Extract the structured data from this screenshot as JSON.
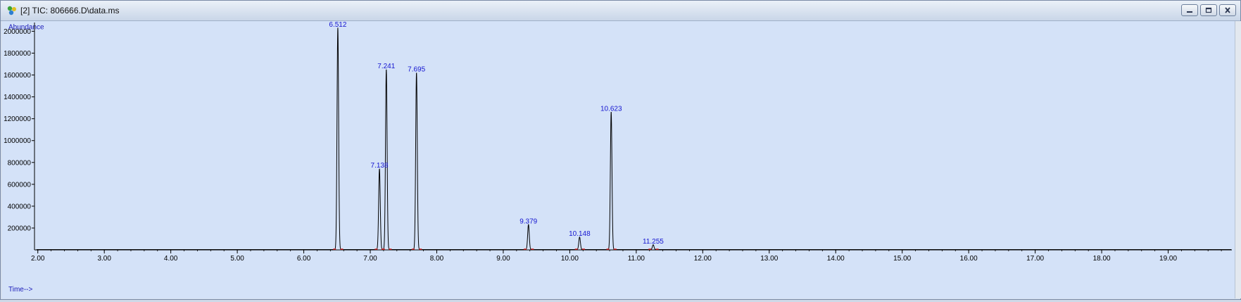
{
  "window": {
    "title": "[2] TIC: 806666.D\\data.ms",
    "icon": "chromatogram-app-icon",
    "buttons": [
      "minimize-icon",
      "restore-icon",
      "close-icon"
    ]
  },
  "colors": {
    "plot_background": "#d4e2f8",
    "trace": "#000000",
    "peak_label": "#1515d0",
    "axis_label": "#1a1ab8",
    "baseline_marker": "#d02020"
  },
  "chart_data": {
    "type": "line",
    "title": "",
    "xlabel": "Time-->",
    "ylabel": "Abundance",
    "xlim": [
      1.95,
      20.0
    ],
    "ylim": [
      0,
      2080000
    ],
    "x_ticks": [
      "2.00",
      "3.00",
      "4.00",
      "5.00",
      "6.00",
      "7.00",
      "8.00",
      "9.00",
      "10.00",
      "11.00",
      "12.00",
      "13.00",
      "14.00",
      "15.00",
      "16.00",
      "17.00",
      "18.00",
      "19.00"
    ],
    "x_tick_values": [
      2,
      3,
      4,
      5,
      6,
      7,
      8,
      9,
      10,
      11,
      12,
      13,
      14,
      15,
      16,
      17,
      18,
      19
    ],
    "y_ticks": [
      "200000",
      "400000",
      "600000",
      "800000",
      "1000000",
      "1200000",
      "1400000",
      "1600000",
      "1800000",
      "2000000"
    ],
    "y_tick_values": [
      200000,
      400000,
      600000,
      800000,
      1000000,
      1200000,
      1400000,
      1600000,
      1800000,
      2000000
    ],
    "grid": false,
    "peaks": [
      {
        "rt": 6.512,
        "label": "6.512",
        "height": 2030000
      },
      {
        "rt": 7.138,
        "label": "7.138",
        "height": 740000
      },
      {
        "rt": 7.241,
        "label": "7.241",
        "height": 1650000
      },
      {
        "rt": 7.695,
        "label": "7.695",
        "height": 1620000
      },
      {
        "rt": 9.379,
        "label": "9.379",
        "height": 230000
      },
      {
        "rt": 10.148,
        "label": "10.148",
        "height": 115000
      },
      {
        "rt": 10.623,
        "label": "10.623",
        "height": 1260000
      },
      {
        "rt": 11.255,
        "label": "11.255",
        "height": 45000
      }
    ]
  }
}
